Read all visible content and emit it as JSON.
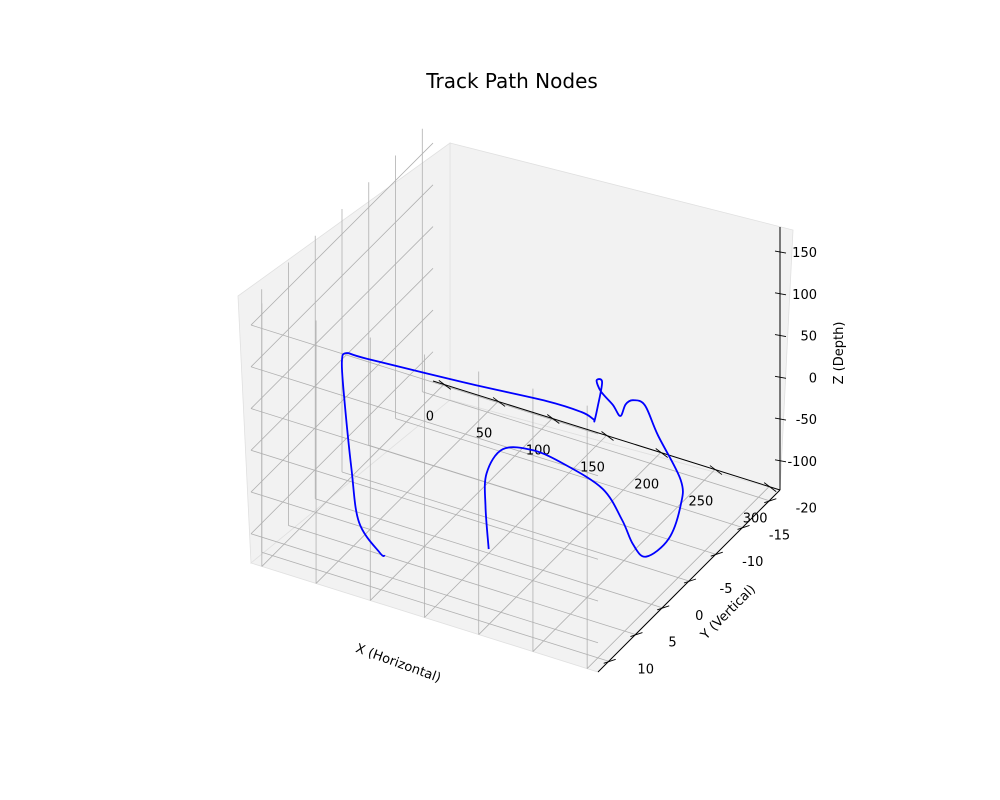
{
  "chart_data": {
    "type": "line",
    "projection": "3d",
    "title": "Track Path Nodes",
    "xlabel": "X (Horizontal)",
    "ylabel": "Y (Vertical)",
    "zlabel": "Z (Depth)",
    "xlim": [
      -10,
      310
    ],
    "ylim": [
      -22,
      12
    ],
    "zlim": [
      -135,
      180
    ],
    "x_ticks": [
      0,
      50,
      100,
      150,
      200,
      250,
      300
    ],
    "y_ticks": [
      -20,
      -15,
      -10,
      -5,
      0,
      5,
      10
    ],
    "z_ticks": [
      -100,
      -50,
      0,
      50,
      100,
      150
    ],
    "grid": true,
    "pane_color": "#f2f2f2",
    "grid_color": "#b0b0b0",
    "series": [
      {
        "color": "#0000ff",
        "points": [
          [
            150,
            0,
            -130
          ],
          [
            147,
            0,
            -80
          ],
          [
            148,
            0,
            -40
          ],
          [
            163,
            0,
            -5
          ],
          [
            191,
            0,
            5
          ],
          [
            220,
            0,
            0
          ],
          [
            255,
            0,
            -15
          ],
          [
            273,
            0,
            -45
          ],
          [
            283,
            0,
            -70
          ],
          [
            295,
            0,
            -80
          ],
          [
            316,
            0,
            -50
          ],
          [
            327,
            0,
            -5
          ],
          [
            327,
            0,
            25
          ],
          [
            306,
            0,
            70
          ],
          [
            294,
            0,
            101
          ],
          [
            288,
            1,
            111
          ],
          [
            291,
            3,
            120
          ],
          [
            296,
            5,
            121
          ],
          [
            294,
            6,
            140
          ],
          [
            288,
            7,
            160
          ],
          [
            289,
            8,
            180
          ],
          [
            294,
            8,
            180
          ],
          [
            295,
            9,
            158
          ],
          [
            287,
            8,
            131
          ],
          [
            281,
            7,
            124
          ],
          [
            270,
            7,
            128
          ],
          [
            238,
            7,
            128
          ],
          [
            170,
            8,
            128
          ],
          [
            82,
            9,
            128
          ],
          [
            63,
            9,
            127
          ],
          [
            59,
            9,
            115
          ],
          [
            56,
            8,
            67
          ],
          [
            58,
            7,
            -27
          ],
          [
            60,
            6,
            -96
          ],
          [
            74,
            5,
            -133
          ],
          [
            79,
            5,
            -135
          ]
        ]
      }
    ]
  }
}
